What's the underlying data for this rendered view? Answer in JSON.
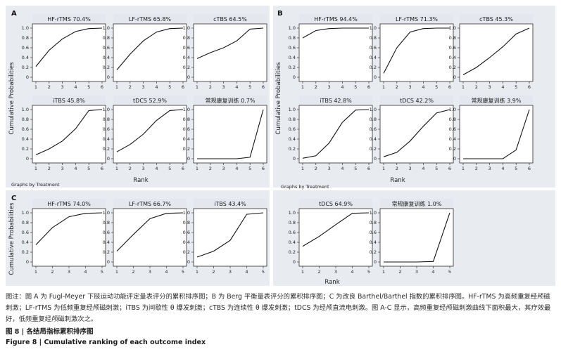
{
  "figure": {
    "panel_letters": [
      "A",
      "B",
      "C"
    ],
    "axis_labels": {
      "y": "Cumulative Probabilities",
      "x": "Rank"
    },
    "by_label": "Graphs by Treatment",
    "note": "图注：图 A 为 Fugl-Meyer 下肢运动功能评定量表评分的累积排序图；B 为 Berg 平衡量表评分的累积排序图；C 为改良 Barthel/Barthel 指数的累积排序图。HF-rTMS 为高频重复经颅磁刺激；LF-rTMS 为低频重复经颅磁刺激；iTBS 为间歇性 θ 爆发刺激；cTBS 为连续性 θ 爆发刺激；tDCS 为经颅直流电刺激。图 A-C 显示，高频重复经颅磁刺激曲线下面积最大，其疗效最好，低频重复经颅磁刺激次之。",
    "caption_cn": "图 8 | 各结局指标累积排序图",
    "caption_en": "Figure 8 | Cumulative ranking of each outcome index"
  },
  "chart_data": [
    {
      "panel": "A",
      "type": "line",
      "xlabel": "Rank",
      "ylabel": "Cumulative Probabilities",
      "xlim": [
        1,
        6
      ],
      "ylim": [
        0,
        1
      ],
      "x_ticks": [
        1,
        2,
        3,
        4,
        5,
        6
      ],
      "y_ticks": [
        "0",
        "0.2",
        "0.4",
        "0.6",
        "0.8",
        "1.0"
      ],
      "subplots": [
        {
          "title": "HF-rTMS 70.4%",
          "x": [
            1,
            2,
            3,
            4,
            5,
            6
          ],
          "y": [
            0.22,
            0.55,
            0.78,
            0.93,
            0.99,
            1.0
          ]
        },
        {
          "title": "LF-rTMS 65.8%",
          "x": [
            1,
            2,
            3,
            4,
            5,
            6
          ],
          "y": [
            0.15,
            0.47,
            0.74,
            0.92,
            0.99,
            1.0
          ]
        },
        {
          "title": "cTBS 64.5%",
          "x": [
            1,
            2,
            3,
            4,
            5,
            6
          ],
          "y": [
            0.38,
            0.5,
            0.6,
            0.74,
            0.98,
            1.0
          ]
        },
        {
          "title": "iTBS 45.8%",
          "x": [
            1,
            2,
            3,
            4,
            5,
            6
          ],
          "y": [
            0.08,
            0.2,
            0.36,
            0.61,
            0.98,
            1.0
          ]
        },
        {
          "title": "tDCS 52.9%",
          "x": [
            1,
            2,
            3,
            4,
            5,
            6
          ],
          "y": [
            0.14,
            0.29,
            0.5,
            0.78,
            0.98,
            1.0
          ]
        },
        {
          "title": "常规康复训练 0.7%",
          "x": [
            1,
            2,
            3,
            4,
            5,
            6
          ],
          "y": [
            0.0,
            0.0,
            0.0,
            0.0,
            0.03,
            1.0
          ]
        }
      ]
    },
    {
      "panel": "B",
      "type": "line",
      "xlabel": "Rank",
      "ylabel": "Cumulative Probabilities",
      "xlim": [
        1,
        6
      ],
      "ylim": [
        0,
        1
      ],
      "x_ticks": [
        1,
        2,
        3,
        4,
        5,
        6
      ],
      "y_ticks": [
        "0",
        "0.2",
        "0.4",
        "0.6",
        "0.8",
        "1.0"
      ],
      "subplots": [
        {
          "title": "HF-rTMS 94.4%",
          "x": [
            1,
            2,
            3,
            4,
            5,
            6
          ],
          "y": [
            0.8,
            0.95,
            0.99,
            1.0,
            1.0,
            1.0
          ]
        },
        {
          "title": "LF-rTMS 71.3%",
          "x": [
            1,
            2,
            3,
            4,
            5,
            6
          ],
          "y": [
            0.08,
            0.6,
            0.92,
            0.99,
            1.0,
            1.0
          ]
        },
        {
          "title": "cTBS 45.3%",
          "x": [
            1,
            2,
            3,
            4,
            5,
            6
          ],
          "y": [
            0.05,
            0.2,
            0.4,
            0.62,
            0.88,
            1.0
          ]
        },
        {
          "title": "iTBS 42.8%",
          "x": [
            1,
            2,
            3,
            4,
            5,
            6
          ],
          "y": [
            0.01,
            0.06,
            0.32,
            0.74,
            0.99,
            1.0
          ]
        },
        {
          "title": "tDCS 42.2%",
          "x": [
            1,
            2,
            3,
            4,
            5,
            6
          ],
          "y": [
            0.04,
            0.13,
            0.36,
            0.66,
            0.93,
            1.0
          ]
        },
        {
          "title": "常规康复训练 3.9%",
          "x": [
            1,
            2,
            3,
            4,
            5,
            6
          ],
          "y": [
            0.0,
            0.0,
            0.0,
            0.0,
            0.18,
            1.0
          ]
        }
      ]
    },
    {
      "panel": "C",
      "type": "line",
      "xlabel": "Rank",
      "ylabel": "Cumulative Probabilities",
      "xlim": [
        1,
        5
      ],
      "ylim": [
        0,
        1
      ],
      "x_ticks": [
        1,
        2,
        3,
        4,
        5
      ],
      "y_ticks": [
        "0",
        "0.2",
        "0.4",
        "0.6",
        "0.8",
        "1.0"
      ],
      "subplots": [
        {
          "title": "HF-rTMS 74.0%",
          "x": [
            1,
            2,
            3,
            4,
            5
          ],
          "y": [
            0.35,
            0.7,
            0.92,
            0.99,
            1.0
          ]
        },
        {
          "title": "LF-rTMS 66.7%",
          "x": [
            1,
            2,
            3,
            4,
            5
          ],
          "y": [
            0.22,
            0.56,
            0.88,
            0.99,
            1.0
          ]
        },
        {
          "title": "iTBS 43.4%",
          "x": [
            1,
            2,
            3,
            4,
            5
          ],
          "y": [
            0.1,
            0.22,
            0.44,
            0.97,
            1.0
          ]
        },
        {
          "title": "tDCS 64.9%",
          "x": [
            1,
            2,
            3,
            4,
            5
          ],
          "y": [
            0.32,
            0.52,
            0.76,
            0.99,
            1.0
          ]
        },
        {
          "title": "常规康复训练 1.0%",
          "x": [
            1,
            2,
            3,
            4,
            5
          ],
          "y": [
            0.0,
            0.0,
            0.0,
            0.01,
            1.0
          ]
        }
      ]
    }
  ]
}
